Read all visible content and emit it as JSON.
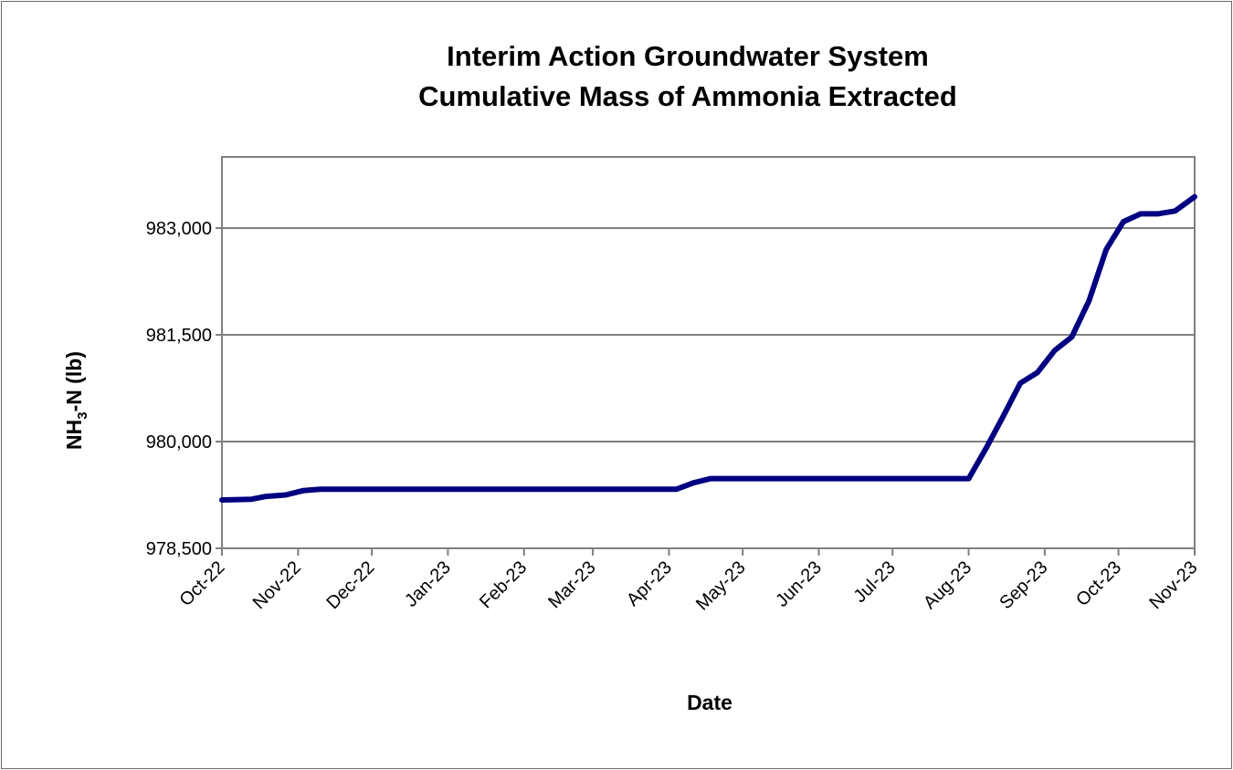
{
  "chart_data": {
    "type": "line",
    "title": [
      "Interim Action Groundwater System",
      "Cumulative Mass of Ammonia Extracted"
    ],
    "xlabel": "Date",
    "ylabel": {
      "prefix": "NH",
      "sub": "3",
      "suffix": "-N  (lb)"
    },
    "ylim": [
      978500,
      984000
    ],
    "yticks": [
      978500,
      980000,
      981500,
      983000
    ],
    "ytick_labels": [
      "978,500",
      "980,000",
      "981,500",
      "983,000"
    ],
    "xlim": [
      "2022-10-01",
      "2023-11-01"
    ],
    "xticks": [
      "2022-10-01",
      "2022-11-01",
      "2022-12-01",
      "2023-01-01",
      "2023-02-01",
      "2023-03-01",
      "2023-04-01",
      "2023-05-01",
      "2023-06-01",
      "2023-07-01",
      "2023-08-01",
      "2023-09-01",
      "2023-10-01",
      "2023-11-01"
    ],
    "xtick_labels": [
      "Oct-22",
      "Nov-22",
      "Dec-22",
      "Jan-23",
      "Feb-23",
      "Mar-23",
      "Apr-23",
      "May-23",
      "Jun-23",
      "Jul-23",
      "Aug-23",
      "Sep-23",
      "Oct-23",
      "Nov-23"
    ],
    "grid": "horizontal",
    "legend": "none",
    "series": [
      {
        "color": "#000080",
        "points": [
          [
            "2022-10-01",
            979180
          ],
          [
            "2022-10-13",
            979190
          ],
          [
            "2022-10-19",
            979230
          ],
          [
            "2022-10-27",
            979250
          ],
          [
            "2022-11-03",
            979310
          ],
          [
            "2022-11-10",
            979330
          ],
          [
            "2023-04-04",
            979330
          ],
          [
            "2023-04-11",
            979420
          ],
          [
            "2023-04-18",
            979480
          ],
          [
            "2023-08-01",
            979480
          ],
          [
            "2023-08-08",
            979900
          ],
          [
            "2023-08-15",
            980350
          ],
          [
            "2023-08-22",
            980820
          ],
          [
            "2023-08-29",
            980970
          ],
          [
            "2023-09-05",
            981280
          ],
          [
            "2023-09-12",
            981470
          ],
          [
            "2023-09-19",
            981980
          ],
          [
            "2023-09-26",
            982700
          ],
          [
            "2023-10-03",
            983090
          ],
          [
            "2023-10-10",
            983200
          ],
          [
            "2023-10-17",
            983200
          ],
          [
            "2023-10-24",
            983240
          ],
          [
            "2023-11-01",
            983440
          ]
        ]
      }
    ]
  }
}
